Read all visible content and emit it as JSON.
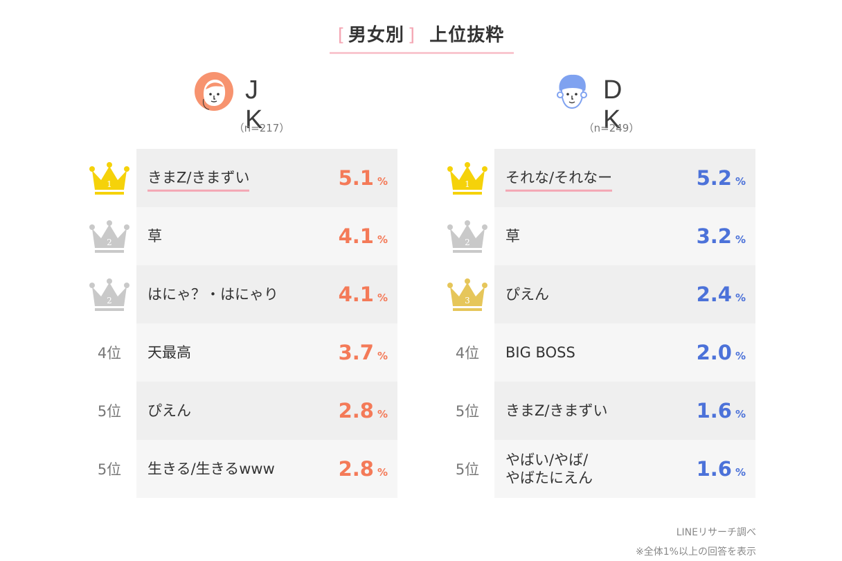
{
  "title": {
    "bracket_open": "[",
    "group": "男女別",
    "bracket_close": "]",
    "main": "上位抜粋"
  },
  "jk": {
    "name": "J K",
    "n": "（n=217）",
    "rows": [
      {
        "rank_label": "1",
        "rank_icon": "crown-gold-icon",
        "term": "きまZ/きまずい",
        "value": "5.1",
        "unit": "%"
      },
      {
        "rank_label": "2",
        "rank_icon": "crown-silver-icon",
        "term": "草",
        "value": "4.1",
        "unit": "%"
      },
      {
        "rank_label": "2",
        "rank_icon": "crown-silver-icon",
        "term": "はにゃ？・はにゃり",
        "value": "4.1",
        "unit": "%"
      },
      {
        "rank_label": "4位",
        "rank_icon": "",
        "term": "天最高",
        "value": "3.7",
        "unit": "%"
      },
      {
        "rank_label": "5位",
        "rank_icon": "",
        "term": "ぴえん",
        "value": "2.8",
        "unit": "%"
      },
      {
        "rank_label": "5位",
        "rank_icon": "",
        "term": "生きる/生きるwww",
        "value": "2.8",
        "unit": "%"
      }
    ]
  },
  "dk": {
    "name": "D K",
    "n": "（n=249）",
    "rows": [
      {
        "rank_label": "1",
        "rank_icon": "crown-gold-icon",
        "term": "それな/それなー",
        "value": "5.2",
        "unit": "%"
      },
      {
        "rank_label": "2",
        "rank_icon": "crown-silver-icon",
        "term": "草",
        "value": "3.2",
        "unit": "%"
      },
      {
        "rank_label": "3",
        "rank_icon": "crown-bronze-icon",
        "term": "ぴえん",
        "value": "2.4",
        "unit": "%"
      },
      {
        "rank_label": "4位",
        "rank_icon": "",
        "term": "BIG BOSS",
        "value": "2.0",
        "unit": "%"
      },
      {
        "rank_label": "5位",
        "rank_icon": "",
        "term": "きまZ/きまずい",
        "value": "1.6",
        "unit": "%"
      },
      {
        "rank_label": "5位",
        "rank_icon": "",
        "term": "やばい/やば/\nやばたにえん",
        "value": "1.6",
        "unit": "%"
      }
    ]
  },
  "colors": {
    "jk_accent": "#f47a58",
    "dk_accent": "#4c72d9",
    "gold": "#f5d20a",
    "silver": "#c9c9c9",
    "bronze": "#e6c65a",
    "pink": "#f4a6b3"
  },
  "footer": {
    "source": "LINEリサーチ調べ",
    "note": "※全体1%以上の回答を表示"
  }
}
